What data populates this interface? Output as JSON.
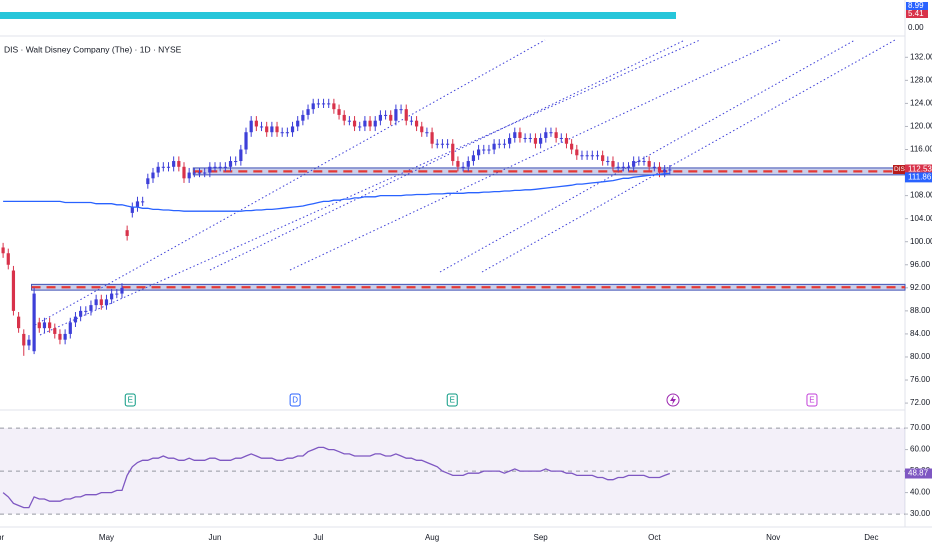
{
  "chart_data": [
    {
      "type": "candlestick",
      "title": "DIS · Walt Disney Company (The) · 1D · NYSE",
      "xlim": [
        -0.6,
        174.5
      ],
      "xticks": [
        {
          "value": -1,
          "label": "Apr"
        },
        {
          "value": 20,
          "label": "May"
        },
        {
          "value": 41,
          "label": "Jun"
        },
        {
          "value": 61,
          "label": "Jul"
        },
        {
          "value": 83,
          "label": "Aug"
        },
        {
          "value": 104,
          "label": "Sep"
        },
        {
          "value": 126,
          "label": "Oct"
        },
        {
          "value": 149,
          "label": "Nov"
        },
        {
          "value": 168,
          "label": "Dec"
        }
      ],
      "ylim": [
        70.8,
        135
      ],
      "yticks": [
        {
          "value": 132,
          "label": "132.00"
        },
        {
          "value": 128,
          "label": "128.00"
        },
        {
          "value": 124,
          "label": "124.00"
        },
        {
          "value": 120,
          "label": "120.00"
        },
        {
          "value": 116,
          "label": "116.00"
        },
        {
          "value": 112,
          "label": "112.00"
        },
        {
          "value": 108,
          "label": "108.00"
        },
        {
          "value": 104,
          "label": "104.00"
        },
        {
          "value": 100,
          "label": "100.00"
        },
        {
          "value": 96,
          "label": "96.00"
        },
        {
          "value": 92,
          "label": "92.00"
        },
        {
          "value": 88,
          "label": "88.00"
        },
        {
          "value": 84,
          "label": "84.00"
        },
        {
          "value": 80,
          "label": "80.00"
        },
        {
          "value": 76,
          "label": "76.00"
        },
        {
          "value": 72,
          "label": "72.00"
        }
      ],
      "series": [
        {
          "name": "DIS",
          "up_color": "#3d3fd8",
          "down_color": "#d8324a",
          "open": [
            99,
            98,
            95,
            87,
            84,
            82,
            81,
            86,
            85,
            86,
            85,
            84,
            83,
            84,
            86,
            87,
            88,
            88,
            89,
            90,
            89,
            90,
            91,
            91,
            102,
            105,
            106,
            107,
            110,
            111,
            112,
            113,
            113,
            113,
            114,
            113,
            111,
            112,
            112,
            112,
            112,
            113,
            113,
            113,
            113,
            114,
            114,
            116,
            119,
            121,
            120,
            120,
            119,
            120,
            119,
            119,
            119,
            120,
            121,
            122,
            123,
            124,
            124,
            124,
            124,
            123,
            122,
            121,
            121,
            120,
            120,
            121,
            120,
            121,
            122,
            122,
            121,
            123,
            123,
            121,
            121,
            120,
            119,
            119,
            117,
            117,
            117,
            117,
            114,
            113,
            113,
            114,
            115,
            116,
            116,
            116,
            117,
            117,
            117,
            118,
            119,
            118,
            118,
            118,
            117,
            118,
            119,
            119,
            118,
            118,
            117,
            116,
            115,
            115,
            115,
            115,
            115,
            114,
            114,
            113,
            113,
            113,
            113,
            114,
            114,
            114,
            113,
            113,
            112,
            112.5
          ],
          "high": [
            99.8,
            98.8,
            95.8,
            87.8,
            84.8,
            83.8,
            92,
            86.8,
            86.8,
            86.8,
            85.8,
            84.8,
            84.8,
            86.8,
            87.8,
            88.8,
            88.8,
            89.8,
            90.8,
            90.8,
            90.8,
            91.8,
            91.8,
            92.8,
            102.8,
            106.8,
            107.8,
            107.8,
            111.8,
            112.8,
            113.8,
            113.8,
            113.8,
            114.8,
            114.8,
            113.8,
            112.8,
            112.8,
            112.8,
            112.8,
            113.8,
            113.8,
            113.8,
            113.8,
            114.8,
            114.8,
            116.8,
            119.8,
            121.8,
            121.8,
            120.8,
            120.8,
            120.8,
            120.8,
            119.8,
            119.8,
            120.8,
            121.8,
            122.8,
            123.8,
            124.8,
            124.8,
            124.8,
            124.8,
            124.8,
            123.8,
            122.8,
            121.8,
            121.8,
            120.8,
            121.8,
            121.8,
            121.8,
            122.8,
            122.8,
            122.8,
            123.8,
            123.8,
            123.8,
            121.8,
            121.8,
            120.8,
            119.8,
            119.8,
            117.8,
            117.8,
            117.8,
            117.8,
            114.8,
            113.8,
            114.8,
            115.8,
            116.8,
            116.8,
            116.8,
            117.8,
            117.8,
            117.8,
            118.8,
            119.8,
            119.8,
            118.8,
            118.8,
            118.8,
            118.8,
            119.8,
            119.8,
            119.8,
            118.8,
            118.8,
            117.8,
            116.8,
            115.8,
            115.8,
            115.8,
            115.8,
            115.8,
            114.8,
            114.8,
            113.8,
            113.8,
            113.8,
            114.8,
            114.8,
            114.8,
            114.8,
            113.8,
            113.8,
            113.3,
            113.3
          ],
          "low": [
            97.2,
            95.2,
            87.2,
            84.2,
            80.2,
            81.2,
            80.5,
            84.2,
            84.2,
            84.2,
            83.2,
            82.2,
            82.2,
            83.2,
            85.2,
            86.2,
            87.2,
            87.2,
            88.2,
            88.2,
            88.2,
            89.2,
            90.2,
            90.2,
            100.2,
            104.2,
            105.2,
            106.2,
            109.2,
            110.2,
            111.2,
            112.2,
            112.2,
            112.2,
            112.2,
            110.2,
            110.2,
            111.2,
            111.2,
            111.2,
            111.2,
            112.2,
            112.2,
            112.2,
            112.2,
            113.2,
            113.2,
            115.2,
            118.2,
            119.2,
            119.2,
            118.2,
            118.2,
            118.2,
            118.2,
            118.2,
            118.2,
            119.2,
            120.2,
            121.2,
            122.2,
            123.2,
            123.2,
            123.2,
            122.2,
            121.2,
            120.2,
            120.2,
            119.2,
            119.2,
            119.2,
            119.2,
            119.2,
            120.2,
            121.2,
            120.2,
            120.2,
            122.2,
            120.2,
            120.2,
            119.2,
            118.2,
            118.2,
            116.2,
            116.2,
            116.2,
            116.2,
            113.2,
            112.2,
            112.2,
            112.2,
            113.2,
            114.2,
            115.2,
            115.2,
            115.2,
            116.2,
            116.2,
            116.2,
            117.2,
            117.2,
            117.2,
            117.2,
            116.2,
            116.2,
            117.2,
            118.2,
            117.2,
            117.2,
            116.2,
            115.2,
            114.2,
            114.2,
            114.2,
            114.2,
            114.2,
            113.2,
            113.2,
            112.2,
            112.2,
            112.2,
            112.2,
            112.2,
            113.2,
            113.2,
            112.2,
            112.2,
            111.2,
            111.2,
            111.7
          ],
          "close": [
            98,
            96,
            88,
            85,
            82,
            83,
            91,
            85,
            86,
            85,
            84,
            83,
            84,
            86,
            87,
            88,
            88,
            89,
            90,
            89,
            90,
            91,
            91,
            92,
            101,
            106,
            107,
            107,
            111,
            112,
            113,
            113,
            113,
            114,
            113,
            111,
            112,
            112,
            112,
            112,
            113,
            113,
            113,
            113,
            114,
            114,
            116,
            119,
            121,
            120,
            120,
            119,
            120,
            119,
            119,
            119,
            120,
            121,
            122,
            123,
            124,
            124,
            124,
            124,
            123,
            122,
            121,
            121,
            120,
            120,
            121,
            120,
            121,
            122,
            122,
            121,
            123,
            123,
            121,
            121,
            120,
            119,
            119,
            117,
            117,
            117,
            117,
            114,
            113,
            113,
            114,
            115,
            116,
            116,
            116,
            117,
            117,
            117,
            118,
            119,
            118,
            118,
            118,
            117,
            118,
            119,
            119,
            118,
            118,
            117,
            116,
            115,
            115,
            115,
            115,
            115,
            114,
            114,
            113,
            113,
            113,
            113,
            114,
            114,
            114,
            113,
            113,
            112,
            112.5,
            112.53
          ]
        },
        {
          "name": "111.86",
          "color": "#2962ff",
          "values": [
            107,
            107,
            107,
            107,
            107,
            107,
            107,
            107,
            107,
            107,
            107,
            107,
            106.8,
            106.8,
            106.8,
            106.8,
            106.8,
            106.8,
            106.6,
            106.6,
            106.6,
            106.6,
            106.4,
            106.4,
            106.2,
            106,
            106,
            105.8,
            105.8,
            105.6,
            105.6,
            105.5,
            105.5,
            105.4,
            105.4,
            105.3,
            105.3,
            105.3,
            105.3,
            105.3,
            105.3,
            105.3,
            105.3,
            105.3,
            105.3,
            105.3,
            105.3,
            105.4,
            105.4,
            105.5,
            105.5,
            105.6,
            105.6,
            105.7,
            105.8,
            105.9,
            106,
            106.1,
            106.2,
            106.4,
            106.6,
            106.8,
            107,
            107,
            107.2,
            107.2,
            107.4,
            107.4,
            107.6,
            107.6,
            107.8,
            107.8,
            107.8,
            108,
            108,
            108,
            108,
            108,
            108.1,
            108.1,
            108.2,
            108.2,
            108.2,
            108.3,
            108.3,
            108.3,
            108.4,
            108.4,
            108.4,
            108.4,
            108.5,
            108.5,
            108.5,
            108.6,
            108.6,
            108.7,
            108.7,
            108.8,
            108.8,
            108.9,
            108.9,
            109,
            109,
            109.1,
            109.2,
            109.3,
            109.4,
            109.5,
            109.6,
            109.7,
            109.8,
            110,
            110,
            110.1,
            110.2,
            110.3,
            110.4,
            110.5,
            110.6,
            110.8,
            111,
            111,
            111.2,
            111.3,
            111.4,
            111.5,
            111.6,
            111.7,
            111.8,
            111.86
          ]
        }
      ],
      "zones": [
        {
          "start": 36.8,
          "low": 111.6,
          "high": 112.8
        },
        {
          "start": 5.5,
          "low": 91.6,
          "high": 92.6
        }
      ],
      "events": [
        {
          "label": "E",
          "x": 24.6,
          "color": "#089981"
        },
        {
          "label": "D",
          "x": 56.5,
          "color": "#2962ff"
        },
        {
          "label": "E",
          "x": 86.9,
          "color": "#089981"
        },
        {
          "label": "E",
          "x": 156.5,
          "color": "#c23fd8"
        }
      ]
    },
    {
      "type": "line",
      "ylim": [
        24,
        78.4
      ],
      "yticks": [
        {
          "value": 70,
          "label": "70.00"
        },
        {
          "value": 60,
          "label": "60.00"
        },
        {
          "value": 50,
          "label": "50.00"
        },
        {
          "value": 40,
          "label": "40.00"
        },
        {
          "value": 30,
          "label": "30.00"
        }
      ],
      "levels": [
        70,
        50,
        30
      ],
      "series": [
        {
          "name": "48.87",
          "color": "#7e57c2",
          "values": [
            40,
            38,
            35,
            34,
            33,
            33,
            38,
            37,
            37,
            36,
            36,
            36,
            37,
            37,
            38,
            38,
            39,
            39,
            39,
            40,
            40,
            40,
            41,
            41,
            48,
            52,
            54,
            55,
            55,
            56,
            56,
            57,
            56,
            56,
            55,
            55,
            56,
            55,
            55,
            55,
            56,
            56,
            55,
            55,
            55,
            56,
            56,
            57,
            58,
            57,
            56,
            56,
            56,
            55,
            55,
            56,
            56,
            57,
            57,
            59,
            60,
            61,
            61,
            60,
            60,
            59,
            58,
            58,
            57,
            57,
            57,
            57,
            58,
            58,
            57,
            57,
            58,
            57,
            56,
            56,
            55,
            55,
            54,
            53,
            52,
            50,
            49,
            48,
            48,
            48,
            49,
            49,
            49,
            50,
            50,
            50,
            50,
            49,
            50,
            51,
            50,
            50,
            50,
            50,
            50,
            51,
            50,
            50,
            50,
            49,
            49,
            48,
            48,
            48,
            48,
            47,
            47,
            46,
            46,
            47,
            47,
            48,
            48,
            48,
            48,
            47,
            47,
            47,
            48,
            48.87
          ]
        }
      ]
    }
  ],
  "volume_pane": {
    "labels": [
      {
        "value": 8.99,
        "label": "8.99"
      },
      {
        "value": 5.41,
        "label": "5.41"
      },
      {
        "value": 0,
        "label": "0.00"
      }
    ]
  }
}
